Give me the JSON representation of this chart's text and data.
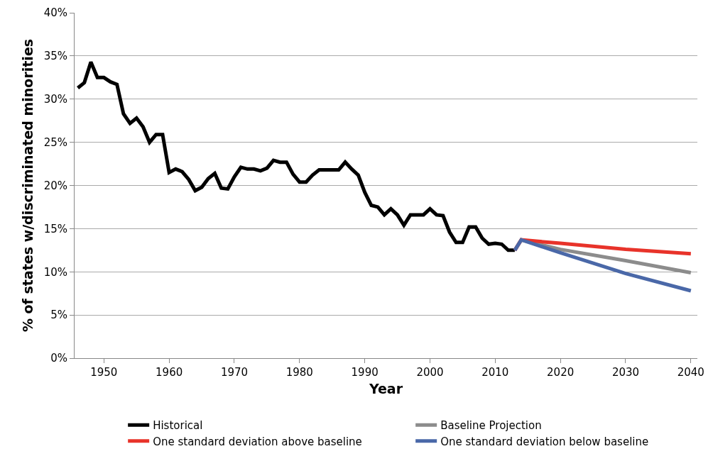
{
  "chart_data": {
    "type": "line",
    "xlabel": "Year",
    "ylabel": "% of states w/discriminated minorities",
    "xlim": [
      1945.5,
      2041
    ],
    "xticks": [
      1950,
      1960,
      1970,
      1980,
      1990,
      2000,
      2010,
      2020,
      2030,
      2040
    ],
    "ylim": [
      0,
      40
    ],
    "yticks": [
      {
        "value": 0,
        "label": "0%"
      },
      {
        "value": 5,
        "label": "5%"
      },
      {
        "value": 10,
        "label": "10%"
      },
      {
        "value": 15,
        "label": "15%"
      },
      {
        "value": 20,
        "label": "20%"
      },
      {
        "value": 25,
        "label": "25%"
      },
      {
        "value": 30,
        "label": "30%"
      },
      {
        "value": 35,
        "label": "35%"
      },
      {
        "value": 40,
        "label": "40%"
      }
    ],
    "grid": "y",
    "legend": "bottom",
    "marker": "none",
    "line_style": "solid",
    "series": [
      {
        "name": "Historical",
        "color": "#000000",
        "x": [
          1946,
          1947,
          1948,
          1949,
          1950,
          1951,
          1952,
          1953,
          1954,
          1955,
          1956,
          1957,
          1958,
          1959,
          1960,
          1961,
          1962,
          1963,
          1964,
          1965,
          1966,
          1967,
          1968,
          1969,
          1970,
          1971,
          1972,
          1973,
          1974,
          1975,
          1976,
          1977,
          1978,
          1979,
          1980,
          1981,
          1982,
          1983,
          1984,
          1985,
          1986,
          1987,
          1988,
          1989,
          1990,
          1991,
          1992,
          1993,
          1994,
          1995,
          1996,
          1997,
          1998,
          1999,
          2000,
          2001,
          2002,
          2003,
          2004,
          2005,
          2006,
          2007,
          2008,
          2009,
          2010,
          2011,
          2012,
          2013
        ],
        "values": [
          31.3,
          31.9,
          34.3,
          32.5,
          32.5,
          32.0,
          31.7,
          28.3,
          27.2,
          27.8,
          26.8,
          25.0,
          25.9,
          25.9,
          21.5,
          21.9,
          21.6,
          20.7,
          19.4,
          19.8,
          20.8,
          21.4,
          19.7,
          19.6,
          21.0,
          22.1,
          21.9,
          21.9,
          21.7,
          22.0,
          22.9,
          22.7,
          22.7,
          21.3,
          20.4,
          20.4,
          21.2,
          21.8,
          21.8,
          21.8,
          21.8,
          22.7,
          21.9,
          21.2,
          19.2,
          17.7,
          17.5,
          16.6,
          17.3,
          16.6,
          15.4,
          16.6,
          16.6,
          16.6,
          17.3,
          16.6,
          16.5,
          14.6,
          13.4,
          13.4,
          15.2,
          15.2,
          13.9,
          13.2,
          13.3,
          13.2,
          12.5,
          12.5
        ]
      },
      {
        "name": "Baseline Projection",
        "color": "#8c8c8c",
        "x": [
          2013,
          2014,
          2020,
          2030,
          2040
        ],
        "values": [
          12.5,
          13.7,
          12.6,
          11.3,
          9.9
        ]
      },
      {
        "name": "One standard deviation above baseline",
        "color": "#e8332a",
        "x": [
          2013,
          2014,
          2020,
          2030,
          2040
        ],
        "values": [
          12.5,
          13.7,
          13.3,
          12.6,
          12.1
        ]
      },
      {
        "name": "One standard deviation below baseline",
        "color": "#4a68a8",
        "x": [
          2013,
          2014,
          2020,
          2030,
          2040
        ],
        "values": [
          12.5,
          13.7,
          12.2,
          9.8,
          7.8
        ]
      }
    ]
  }
}
